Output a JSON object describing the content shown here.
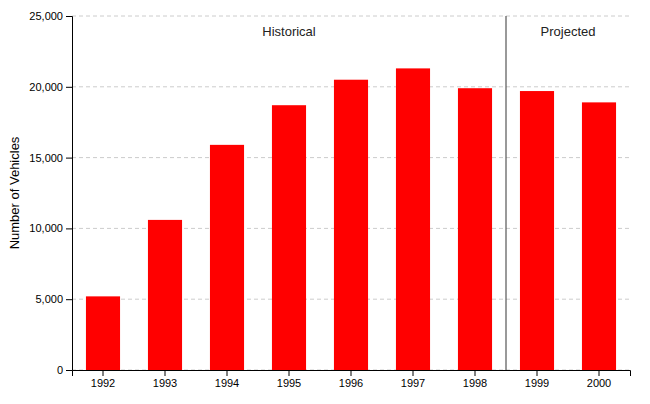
{
  "chart_data": {
    "type": "bar",
    "categories": [
      "1992",
      "1993",
      "1994",
      "1995",
      "1996",
      "1997",
      "1998",
      "1999",
      "2000"
    ],
    "values": [
      5200,
      10600,
      15900,
      18700,
      20500,
      21300,
      19900,
      19700,
      18900
    ],
    "color": "#FF0000",
    "ylabel": "Number of Vehicles",
    "ylim": [
      0,
      25000
    ],
    "yticks": [
      0,
      {
        "value": 5000,
        "label": "5,000"
      },
      {
        "value": 10000,
        "label": "10,000"
      },
      {
        "value": 15000,
        "label": "15,000"
      },
      {
        "value": 20000,
        "label": "20,000"
      },
      {
        "value": 25000,
        "label": "25,000"
      }
    ],
    "grid": true,
    "annotations": [
      "Historical",
      "Projected"
    ]
  }
}
